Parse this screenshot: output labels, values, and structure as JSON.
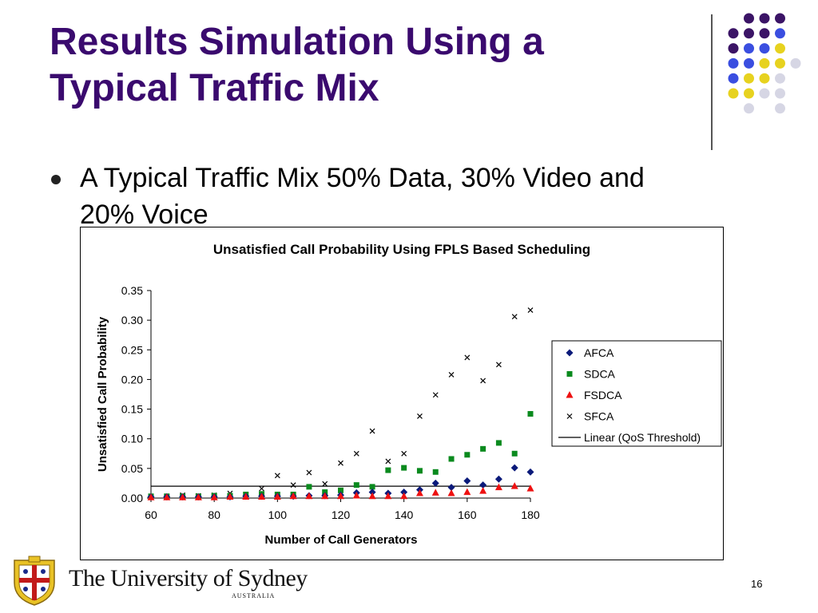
{
  "slide": {
    "title_line1": "Results Simulation Using a",
    "title_line2": "Typical Traffic Mix",
    "bullet_line1": "A Typical Traffic Mix 50% Data, 30% Video and",
    "bullet_line2": "20% Voice",
    "page_number": "16"
  },
  "footer": {
    "university": "The University of Sydney",
    "sub": "AUSTRALIA"
  },
  "colors": {
    "title": "#3a0a6e",
    "afca": "#0b1a7a",
    "sdca": "#0a8a1e",
    "fsdca": "#ee1111",
    "sfca": "#000000",
    "dot_purple": "#3b1466",
    "dot_blue": "#3a4ee0",
    "dot_yellow": "#e7d21f",
    "dot_grey": "#d6d6e4"
  },
  "chart_data": {
    "type": "scatter",
    "title": "Unsatisfied Call Probability Using FPLS Based Scheduling",
    "xlabel": "Number of Call Generators",
    "ylabel": "Unsatisfied Call Probability",
    "xlim": [
      60,
      180
    ],
    "ylim": [
      0,
      0.35
    ],
    "xticks": [
      "60",
      "80",
      "100",
      "120",
      "140",
      "160",
      "180"
    ],
    "yticks": [
      "0.00",
      "0.05",
      "0.10",
      "0.15",
      "0.20",
      "0.25",
      "0.30",
      "0.35"
    ],
    "grid": false,
    "legend_position": "right",
    "series": [
      {
        "name": "AFCA",
        "marker": "diamond",
        "points": [
          [
            60,
            0.002
          ],
          [
            65,
            0.002
          ],
          [
            70,
            0.002
          ],
          [
            75,
            0.002
          ],
          [
            80,
            0.002
          ],
          [
            85,
            0.002
          ],
          [
            90,
            0.003
          ],
          [
            95,
            0.003
          ],
          [
            100,
            0.003
          ],
          [
            105,
            0.003
          ],
          [
            110,
            0.004
          ],
          [
            115,
            0.004
          ],
          [
            120,
            0.005
          ],
          [
            125,
            0.009
          ],
          [
            130,
            0.01
          ],
          [
            135,
            0.008
          ],
          [
            140,
            0.01
          ],
          [
            145,
            0.014
          ],
          [
            150,
            0.025
          ],
          [
            155,
            0.018
          ],
          [
            160,
            0.029
          ],
          [
            165,
            0.022
          ],
          [
            170,
            0.032
          ],
          [
            175,
            0.051
          ],
          [
            180,
            0.044
          ]
        ]
      },
      {
        "name": "SDCA",
        "marker": "square",
        "points": [
          [
            60,
            0.003
          ],
          [
            65,
            0.003
          ],
          [
            70,
            0.003
          ],
          [
            75,
            0.003
          ],
          [
            80,
            0.004
          ],
          [
            85,
            0.004
          ],
          [
            90,
            0.006
          ],
          [
            95,
            0.007
          ],
          [
            100,
            0.006
          ],
          [
            105,
            0.006
          ],
          [
            110,
            0.019
          ],
          [
            115,
            0.01
          ],
          [
            120,
            0.013
          ],
          [
            125,
            0.022
          ],
          [
            130,
            0.019
          ],
          [
            135,
            0.047
          ],
          [
            140,
            0.051
          ],
          [
            145,
            0.046
          ],
          [
            150,
            0.044
          ],
          [
            155,
            0.066
          ],
          [
            160,
            0.073
          ],
          [
            165,
            0.083
          ],
          [
            170,
            0.093
          ],
          [
            175,
            0.075
          ],
          [
            180,
            0.142
          ]
        ]
      },
      {
        "name": "FSDCA",
        "marker": "triangle",
        "points": [
          [
            60,
            0.001
          ],
          [
            65,
            0.001
          ],
          [
            70,
            0.001
          ],
          [
            75,
            0.001
          ],
          [
            80,
            0.001
          ],
          [
            85,
            0.002
          ],
          [
            90,
            0.002
          ],
          [
            95,
            0.002
          ],
          [
            100,
            0.002
          ],
          [
            105,
            0.003
          ],
          [
            110,
            0.003
          ],
          [
            115,
            0.003
          ],
          [
            120,
            0.003
          ],
          [
            125,
            0.004
          ],
          [
            130,
            0.003
          ],
          [
            135,
            0.003
          ],
          [
            140,
            0.003
          ],
          [
            145,
            0.008
          ],
          [
            150,
            0.009
          ],
          [
            155,
            0.008
          ],
          [
            160,
            0.01
          ],
          [
            165,
            0.012
          ],
          [
            170,
            0.018
          ],
          [
            175,
            0.02
          ],
          [
            180,
            0.016
          ]
        ]
      },
      {
        "name": "SFCA",
        "marker": "x",
        "points": [
          [
            60,
            0.002
          ],
          [
            65,
            0.003
          ],
          [
            70,
            0.005
          ],
          [
            75,
            0.004
          ],
          [
            80,
            0.005
          ],
          [
            85,
            0.008
          ],
          [
            90,
            0.006
          ],
          [
            95,
            0.016
          ],
          [
            100,
            0.038
          ],
          [
            105,
            0.022
          ],
          [
            110,
            0.043
          ],
          [
            115,
            0.024
          ],
          [
            120,
            0.059
          ],
          [
            125,
            0.075
          ],
          [
            130,
            0.113
          ],
          [
            135,
            0.062
          ],
          [
            140,
            0.075
          ],
          [
            145,
            0.138
          ],
          [
            150,
            0.174
          ],
          [
            155,
            0.208
          ],
          [
            160,
            0.237
          ],
          [
            165,
            0.198
          ],
          [
            170,
            0.225
          ],
          [
            175,
            0.306
          ],
          [
            180,
            0.317
          ]
        ]
      },
      {
        "name": "Linear (QoS Threshold)",
        "marker": "line",
        "points": [
          [
            60,
            0.02
          ],
          [
            180,
            0.02
          ]
        ]
      }
    ]
  }
}
